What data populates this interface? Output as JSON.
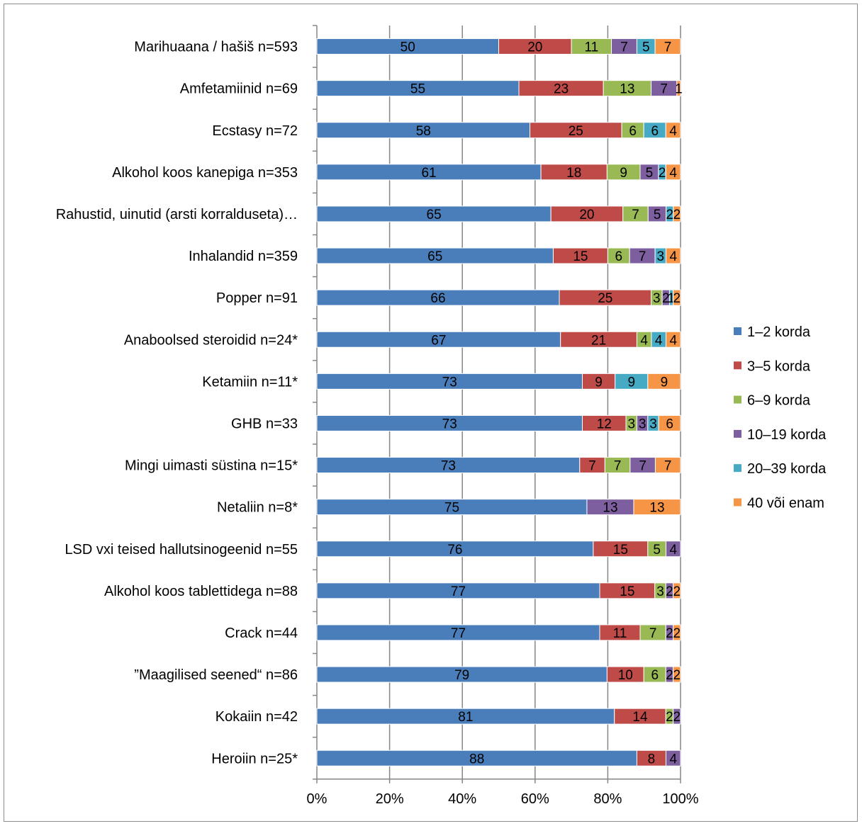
{
  "chart_data": {
    "type": "bar",
    "orientation": "horizontal",
    "stacked": "percent",
    "xlim": [
      0,
      100
    ],
    "x_ticks": [
      "0%",
      "20%",
      "40%",
      "60%",
      "80%",
      "100%"
    ],
    "grid": true,
    "legend_position": "right",
    "categories": [
      "Marihuaana / hašiš n=593",
      "Amfetamiinid n=69",
      "Ecstasy n=72",
      "Alkohol koos kanepiga n=353",
      "Rahustid, uinutid (arsti korralduseta)…",
      "Inhalandid n=359",
      "Popper n=91",
      "Anaboolsed steroidid n=24*",
      "Ketamiin n=11*",
      "GHB n=33",
      "Mingi uimasti süstina n=15*",
      "Netaliin n=8*",
      "LSD vxi teised hallutsinogeenid n=55",
      "Alkohol koos tablettidega n=88",
      "Crack n=44",
      "”Maagilised seened“ n=86",
      "Kokaiin n=42",
      "Heroiin n=25*"
    ],
    "series": [
      {
        "name": "1–2 korda",
        "color": "#4a7ebb",
        "values": [
          50,
          55,
          58,
          61,
          65,
          65,
          66,
          67,
          73,
          73,
          73,
          75,
          76,
          77,
          77,
          79,
          81,
          88
        ]
      },
      {
        "name": "3–5 korda",
        "color": "#be4b48",
        "values": [
          20,
          23,
          25,
          18,
          20,
          15,
          25,
          21,
          9,
          12,
          7,
          0,
          15,
          15,
          11,
          10,
          14,
          8
        ]
      },
      {
        "name": "6–9 korda",
        "color": "#98b954",
        "values": [
          11,
          13,
          6,
          9,
          7,
          6,
          3,
          4,
          0,
          3,
          7,
          0,
          5,
          3,
          7,
          6,
          2,
          0
        ]
      },
      {
        "name": "10–19 korda",
        "color": "#7d5fa0",
        "values": [
          7,
          7,
          0,
          5,
          5,
          7,
          2,
          0,
          0,
          3,
          7,
          13,
          4,
          2,
          2,
          2,
          2,
          4
        ]
      },
      {
        "name": "20–39 korda",
        "color": "#46aac5",
        "values": [
          5,
          0,
          6,
          2,
          2,
          3,
          1,
          4,
          9,
          3,
          0,
          0,
          0,
          0,
          0,
          0,
          0,
          0
        ]
      },
      {
        "name": "40 või enam",
        "color": "#f69546",
        "values": [
          7,
          1,
          4,
          4,
          2,
          4,
          2,
          4,
          9,
          6,
          7,
          13,
          0,
          2,
          2,
          2,
          0,
          0
        ]
      }
    ]
  }
}
